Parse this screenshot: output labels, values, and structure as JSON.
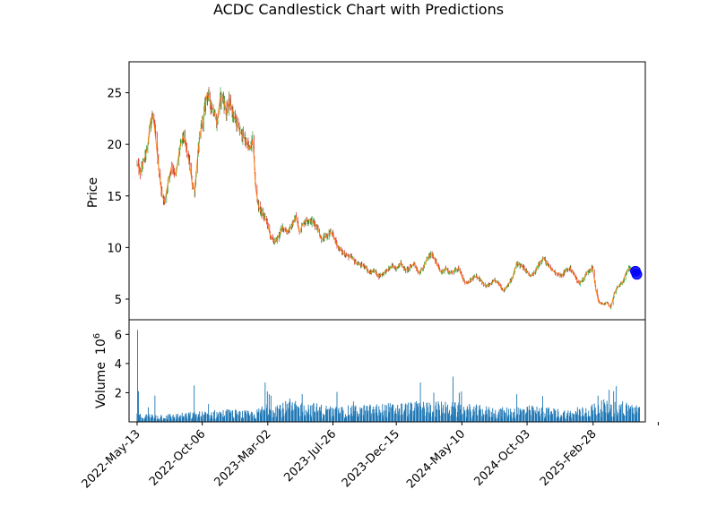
{
  "chart_data": {
    "type": "candlestick",
    "title": "ACDC Candlestick Chart with Predictions",
    "price_panel": {
      "ylabel": "Price",
      "ylim": [
        3,
        28
      ],
      "yticks": [
        5,
        10,
        15,
        20,
        25
      ],
      "up_color": "#2ca02c",
      "down_color": "#d62728",
      "line_color": "#ff7f0e",
      "prediction_color": "#0000ff"
    },
    "volume_panel": {
      "ylabel": "Volume",
      "exponent_label": "10",
      "exponent_power": "6",
      "ylim": [
        0,
        7
      ],
      "yticks": [
        2,
        4,
        6
      ],
      "bar_color": "#1f77b4"
    },
    "xaxis": {
      "start": "2022-04-25",
      "end": "2025-06-25",
      "ticks": [
        {
          "date": "2022-05-13",
          "label": "2022-May-13"
        },
        {
          "date": "2022-10-06",
          "label": "2022-Oct-06"
        },
        {
          "date": "2023-03-02",
          "label": "2023-Mar-02"
        },
        {
          "date": "2023-07-26",
          "label": "2023-Jul-26"
        },
        {
          "date": "2023-12-15",
          "label": "2023-Dec-15"
        },
        {
          "date": "2024-05-10",
          "label": "2024-May-10"
        },
        {
          "date": "2024-10-03",
          "label": "2024-Oct-03"
        },
        {
          "date": "2025-02-28",
          "label": "2025-Feb-28"
        },
        {
          "date": "2025-07-24",
          "label": ""
        }
      ]
    },
    "price_path": [
      [
        "2022-05-13",
        18.2
      ],
      [
        "2022-05-20",
        17.2
      ],
      [
        "2022-05-27",
        18.3
      ],
      [
        "2022-06-05",
        19.5
      ],
      [
        "2022-06-12",
        22.5
      ],
      [
        "2022-06-18",
        22.8
      ],
      [
        "2022-06-25",
        20.0
      ],
      [
        "2022-07-02",
        17.0
      ],
      [
        "2022-07-08",
        15.0
      ],
      [
        "2022-07-14",
        14.4
      ],
      [
        "2022-07-22",
        16.5
      ],
      [
        "2022-07-30",
        18.0
      ],
      [
        "2022-08-08",
        17.0
      ],
      [
        "2022-08-16",
        19.5
      ],
      [
        "2022-08-24",
        20.8
      ],
      [
        "2022-09-01",
        19.5
      ],
      [
        "2022-09-08",
        18.0
      ],
      [
        "2022-09-14",
        16.0
      ],
      [
        "2022-09-19",
        15.5
      ],
      [
        "2022-09-26",
        19.0
      ],
      [
        "2022-10-03",
        21.5
      ],
      [
        "2022-10-10",
        23.0
      ],
      [
        "2022-10-17",
        25.0
      ],
      [
        "2022-10-24",
        24.0
      ],
      [
        "2022-11-01",
        23.2
      ],
      [
        "2022-11-08",
        22.0
      ],
      [
        "2022-11-15",
        24.5
      ],
      [
        "2022-11-22",
        24.5
      ],
      [
        "2022-11-29",
        23.0
      ],
      [
        "2022-12-06",
        24.2
      ],
      [
        "2022-12-14",
        23.0
      ],
      [
        "2022-12-22",
        22.0
      ],
      [
        "2023-01-01",
        21.0
      ],
      [
        "2023-01-10",
        20.5
      ],
      [
        "2023-01-20",
        19.5
      ],
      [
        "2023-01-28",
        20.5
      ],
      [
        "2023-02-02",
        16.0
      ],
      [
        "2023-02-09",
        14.0
      ],
      [
        "2023-02-18",
        13.2
      ],
      [
        "2023-02-28",
        12.5
      ],
      [
        "2023-03-08",
        11.0
      ],
      [
        "2023-03-18",
        10.5
      ],
      [
        "2023-03-25",
        11.0
      ],
      [
        "2023-04-04",
        12.0
      ],
      [
        "2023-04-14",
        11.5
      ],
      [
        "2023-04-24",
        12.0
      ],
      [
        "2023-05-04",
        13.0
      ],
      [
        "2023-05-12",
        11.5
      ],
      [
        "2023-05-22",
        12.5
      ],
      [
        "2023-06-01",
        12.7
      ],
      [
        "2023-06-11",
        12.5
      ],
      [
        "2023-06-21",
        12.0
      ],
      [
        "2023-06-30",
        10.8
      ],
      [
        "2023-07-10",
        11.0
      ],
      [
        "2023-07-20",
        11.5
      ],
      [
        "2023-07-28",
        11.0
      ],
      [
        "2023-08-07",
        10.0
      ],
      [
        "2023-08-17",
        9.5
      ],
      [
        "2023-08-27",
        9.2
      ],
      [
        "2023-09-06",
        9.0
      ],
      [
        "2023-09-16",
        8.5
      ],
      [
        "2023-09-26",
        8.3
      ],
      [
        "2023-10-06",
        8.2
      ],
      [
        "2023-10-16",
        7.5
      ],
      [
        "2023-10-26",
        7.8
      ],
      [
        "2023-11-05",
        7.2
      ],
      [
        "2023-11-15",
        7.5
      ],
      [
        "2023-11-25",
        7.8
      ],
      [
        "2023-12-05",
        8.2
      ],
      [
        "2023-12-15",
        8.0
      ],
      [
        "2023-12-25",
        8.5
      ],
      [
        "2024-01-04",
        7.8
      ],
      [
        "2024-01-14",
        8.0
      ],
      [
        "2024-01-24",
        8.5
      ],
      [
        "2024-02-03",
        7.5
      ],
      [
        "2024-02-13",
        8.0
      ],
      [
        "2024-02-23",
        9.0
      ],
      [
        "2024-03-04",
        9.4
      ],
      [
        "2024-03-14",
        8.5
      ],
      [
        "2024-03-24",
        7.5
      ],
      [
        "2024-04-03",
        8.0
      ],
      [
        "2024-04-13",
        7.5
      ],
      [
        "2024-04-23",
        7.8
      ],
      [
        "2024-05-03",
        8.0
      ],
      [
        "2024-05-13",
        6.8
      ],
      [
        "2024-05-23",
        6.5
      ],
      [
        "2024-06-02",
        7.0
      ],
      [
        "2024-06-12",
        7.2
      ],
      [
        "2024-06-22",
        6.8
      ],
      [
        "2024-07-02",
        6.2
      ],
      [
        "2024-07-12",
        6.4
      ],
      [
        "2024-07-22",
        6.8
      ],
      [
        "2024-08-01",
        6.5
      ],
      [
        "2024-08-11",
        5.8
      ],
      [
        "2024-08-21",
        6.4
      ],
      [
        "2024-08-31",
        7.0
      ],
      [
        "2024-09-10",
        8.5
      ],
      [
        "2024-09-20",
        8.2
      ],
      [
        "2024-09-30",
        7.8
      ],
      [
        "2024-10-10",
        7.2
      ],
      [
        "2024-10-20",
        7.5
      ],
      [
        "2024-10-30",
        8.5
      ],
      [
        "2024-11-09",
        9.0
      ],
      [
        "2024-11-19",
        8.2
      ],
      [
        "2024-11-29",
        7.8
      ],
      [
        "2024-12-09",
        7.5
      ],
      [
        "2024-12-19",
        7.2
      ],
      [
        "2024-12-29",
        7.8
      ],
      [
        "2025-01-08",
        8.0
      ],
      [
        "2025-01-18",
        7.2
      ],
      [
        "2025-01-28",
        6.5
      ],
      [
        "2025-02-07",
        7.0
      ],
      [
        "2025-02-17",
        7.8
      ],
      [
        "2025-02-27",
        8.0
      ],
      [
        "2025-03-06",
        6.0
      ],
      [
        "2025-03-12",
        4.8
      ],
      [
        "2025-03-20",
        4.5
      ],
      [
        "2025-04-01",
        4.6
      ],
      [
        "2025-04-09",
        4.2
      ],
      [
        "2025-04-16",
        5.5
      ],
      [
        "2025-04-24",
        6.2
      ],
      [
        "2025-05-04",
        6.5
      ],
      [
        "2025-05-12",
        7.5
      ],
      [
        "2025-05-20",
        8.0
      ],
      [
        "2025-05-28",
        7.8
      ],
      [
        "2025-06-04",
        7.6
      ],
      [
        "2025-06-12",
        7.5
      ]
    ],
    "volume_path": [
      [
        "2022-05-13",
        0.35
      ],
      [
        "2022-08-01",
        0.35
      ],
      [
        "2022-12-01",
        0.55
      ],
      [
        "2023-02-01",
        0.45
      ],
      [
        "2023-03-02",
        0.9
      ],
      [
        "2023-06-01",
        0.85
      ],
      [
        "2023-08-01",
        0.65
      ],
      [
        "2023-12-01",
        0.8
      ],
      [
        "2024-03-01",
        0.9
      ],
      [
        "2024-05-10",
        0.8
      ],
      [
        "2024-08-01",
        0.6
      ],
      [
        "2024-10-03",
        0.7
      ],
      [
        "2025-01-15",
        0.5
      ],
      [
        "2025-03-15",
        0.9
      ],
      [
        "2025-06-12",
        0.8
      ]
    ],
    "volume_spikes": [
      [
        "2022-05-14",
        6.3
      ],
      [
        "2022-05-16",
        2.1
      ],
      [
        "2022-06-07",
        1.0
      ],
      [
        "2022-06-22",
        1.8
      ],
      [
        "2022-09-18",
        2.5
      ],
      [
        "2023-02-24",
        2.7
      ],
      [
        "2023-03-05",
        1.9
      ],
      [
        "2023-03-09",
        1.8
      ],
      [
        "2023-04-20",
        1.6
      ],
      [
        "2023-05-18",
        1.9
      ],
      [
        "2023-09-10",
        1.4
      ],
      [
        "2024-02-07",
        2.7
      ],
      [
        "2024-03-08",
        2.0
      ],
      [
        "2024-04-20",
        3.1
      ],
      [
        "2024-05-04",
        2.0
      ],
      [
        "2024-09-10",
        1.9
      ],
      [
        "2025-03-11",
        1.8
      ],
      [
        "2025-04-05",
        2.2
      ],
      [
        "2025-04-15",
        2.1
      ],
      [
        "2025-05-05",
        1.4
      ]
    ],
    "predictions": [
      {
        "date": "2025-06-03",
        "value": 7.7
      },
      {
        "date": "2025-06-06",
        "value": 7.4
      }
    ]
  }
}
